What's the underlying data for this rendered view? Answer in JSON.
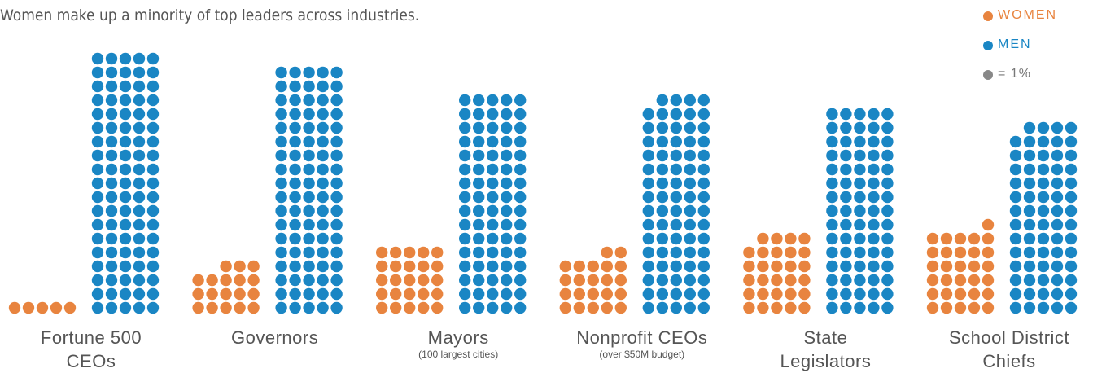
{
  "chart_data": {
    "type": "dot_grid",
    "title": "Women make up a minority of top leaders across industries.",
    "categories": [
      "Fortune 500 CEOs",
      "Governors",
      "Mayors",
      "Nonprofit CEOs",
      "State Legislators",
      "School District Chiefs"
    ],
    "notes": [
      null,
      null,
      "(100 largest cities)",
      "(over $50M budget)",
      null,
      null
    ],
    "series": [
      {
        "name": "WOMEN",
        "color": "#e8843f",
        "values": [
          5,
          18,
          25,
          22,
          29,
          31
        ]
      },
      {
        "name": "MEN",
        "color": "#1a86c4",
        "values": [
          95,
          90,
          80,
          79,
          75,
          69
        ]
      }
    ],
    "unit_legend": "= 1%",
    "unit_color": "#888888"
  }
}
